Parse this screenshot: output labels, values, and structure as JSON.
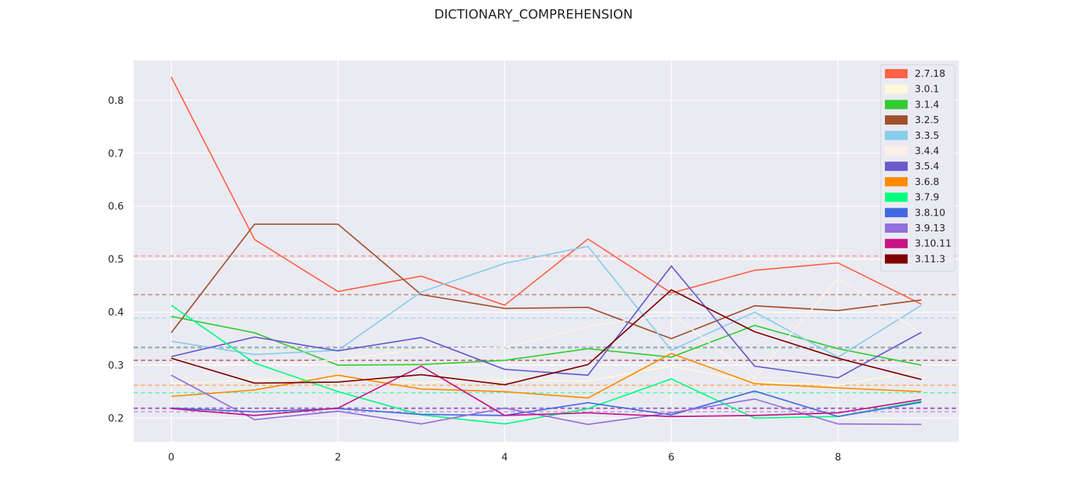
{
  "chart_data": {
    "type": "line",
    "title": "DICTIONARY_COMPREHENSION",
    "xlabel": "",
    "ylabel": "",
    "xlim": [
      -0.45,
      9.45
    ],
    "ylim": [
      0.155,
      0.875
    ],
    "xticks": [
      0,
      2,
      4,
      6,
      8
    ],
    "yticks": [
      0.2,
      0.3,
      0.4,
      0.5,
      0.6,
      0.7,
      0.8
    ],
    "xtick_labels": [
      "0",
      "2",
      "4",
      "6",
      "8"
    ],
    "ytick_labels": [
      "0.2",
      "0.3",
      "0.4",
      "0.5",
      "0.6",
      "0.7",
      "0.8"
    ],
    "grid": true,
    "legend_position": "top-right",
    "x": [
      0,
      1,
      2,
      3,
      4,
      5,
      6,
      7,
      8,
      9
    ],
    "series": [
      {
        "name": "2.7.18",
        "color": "#ff6347",
        "mean": 0.506,
        "values": [
          0.844,
          0.537,
          0.439,
          0.468,
          0.413,
          0.538,
          0.436,
          0.479,
          0.493,
          0.415
        ]
      },
      {
        "name": "3.0.1",
        "color": "#fff8dc",
        "mean": 0.276,
        "values": [
          0.265,
          0.272,
          0.275,
          0.267,
          0.272,
          0.27,
          0.298,
          0.268,
          0.262,
          0.29
        ]
      },
      {
        "name": "3.1.4",
        "color": "#32cd32",
        "mean": 0.332,
        "values": [
          0.392,
          0.361,
          0.3,
          0.301,
          0.309,
          0.331,
          0.315,
          0.375,
          0.331,
          0.3
        ]
      },
      {
        "name": "3.2.5",
        "color": "#a0522d",
        "mean": 0.433,
        "values": [
          0.361,
          0.566,
          0.566,
          0.433,
          0.407,
          0.409,
          0.35,
          0.412,
          0.403,
          0.423
        ]
      },
      {
        "name": "3.3.5",
        "color": "#87ceeb",
        "mean": 0.389,
        "values": [
          0.345,
          0.32,
          0.328,
          0.438,
          0.492,
          0.524,
          0.328,
          0.4,
          0.315,
          0.413
        ]
      },
      {
        "name": "3.4.4",
        "color": "#fdf0e8",
        "mean": 0.333,
        "values": [
          0.31,
          0.3,
          0.31,
          0.33,
          0.333,
          0.373,
          0.397,
          0.277,
          0.464,
          0.36
        ]
      },
      {
        "name": "3.5.4",
        "color": "#6a5acd",
        "mean": 0.334,
        "values": [
          0.316,
          0.353,
          0.327,
          0.352,
          0.292,
          0.281,
          0.487,
          0.298,
          0.276,
          0.362
        ]
      },
      {
        "name": "3.6.8",
        "color": "#ff8c00",
        "mean": 0.262,
        "values": [
          0.241,
          0.253,
          0.281,
          0.255,
          0.25,
          0.238,
          0.322,
          0.265,
          0.257,
          0.25
        ]
      },
      {
        "name": "3.7.9",
        "color": "#00ff7f",
        "mean": 0.248,
        "values": [
          0.413,
          0.304,
          0.25,
          0.206,
          0.189,
          0.218,
          0.274,
          0.2,
          0.203,
          0.232
        ]
      },
      {
        "name": "3.8.10",
        "color": "#4169e1",
        "mean": 0.219,
        "values": [
          0.219,
          0.212,
          0.218,
          0.207,
          0.205,
          0.229,
          0.206,
          0.251,
          0.203,
          0.23
        ]
      },
      {
        "name": "3.9.13",
        "color": "#9370db",
        "mean": 0.212,
        "values": [
          0.281,
          0.197,
          0.213,
          0.189,
          0.219,
          0.188,
          0.21,
          0.236,
          0.189,
          0.188
        ]
      },
      {
        "name": "3.10.11",
        "color": "#c71585",
        "mean": 0.218,
        "values": [
          0.218,
          0.205,
          0.219,
          0.298,
          0.205,
          0.21,
          0.203,
          0.205,
          0.21,
          0.235
        ]
      },
      {
        "name": "3.11.3",
        "color": "#800000",
        "mean": 0.309,
        "values": [
          0.313,
          0.266,
          0.268,
          0.282,
          0.263,
          0.301,
          0.442,
          0.363,
          0.313,
          0.273
        ]
      }
    ],
    "colors": {
      "plot_background": "#eaeaf2",
      "grid": "#ffffff",
      "text": "#222222"
    }
  }
}
